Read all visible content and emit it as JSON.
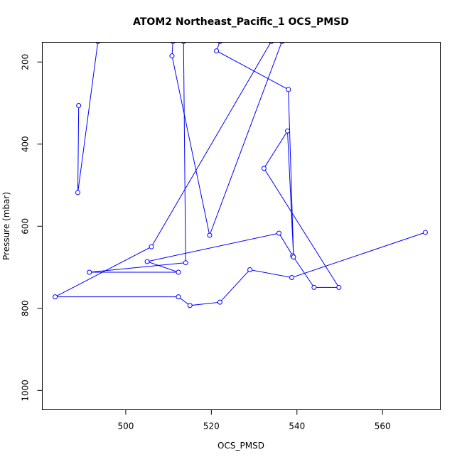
{
  "chart_data": {
    "type": "line",
    "title": "ATOM2 Northeast_Pacific_1 OCS_PMSD",
    "xlabel": "OCS_PMSD",
    "ylabel": "Pressure (mbar)",
    "xlim": [
      480.5,
      573.5
    ],
    "ylim": [
      1047,
      152
    ],
    "y_reversed": true,
    "x_ticks": [
      500,
      520,
      540,
      560
    ],
    "y_ticks": [
      200,
      400,
      600,
      800,
      1000
    ],
    "grid": false,
    "legend": "none",
    "series": [
      {
        "color": "#0000ff",
        "markers": "open-circle",
        "points": [
          {
            "x": 489.0,
            "y": 306
          },
          {
            "x": 488.8,
            "y": 518
          },
          {
            "x": 493.5,
            "y": 150
          },
          {
            "x": 513.5,
            "y": 150
          },
          {
            "x": 514.0,
            "y": 689
          },
          {
            "x": 491.5,
            "y": 712
          },
          {
            "x": 512.3,
            "y": 712
          },
          {
            "x": 505.0,
            "y": 686
          },
          {
            "x": 535.8,
            "y": 617
          },
          {
            "x": 539.0,
            "y": 672
          },
          {
            "x": 544.0,
            "y": 749
          },
          {
            "x": 549.8,
            "y": 749
          },
          {
            "x": 532.3,
            "y": 459
          },
          {
            "x": 537.8,
            "y": 368
          },
          {
            "x": 539.2,
            "y": 675
          },
          {
            "x": 538.0,
            "y": 267
          },
          {
            "x": 521.2,
            "y": 173
          },
          {
            "x": 522.0,
            "y": 150
          },
          {
            "x": 511.0,
            "y": 150
          },
          {
            "x": 510.8,
            "y": 185
          },
          {
            "x": 519.6,
            "y": 622
          },
          {
            "x": 536.5,
            "y": 150
          },
          {
            "x": 534.0,
            "y": 150
          },
          {
            "x": 506.0,
            "y": 650
          },
          {
            "x": 483.5,
            "y": 772
          },
          {
            "x": 512.3,
            "y": 772
          },
          {
            "x": 515.0,
            "y": 793
          },
          {
            "x": 522.0,
            "y": 785
          },
          {
            "x": 529.0,
            "y": 706
          },
          {
            "x": 538.8,
            "y": 725
          },
          {
            "x": 570.0,
            "y": 615
          }
        ]
      }
    ]
  }
}
